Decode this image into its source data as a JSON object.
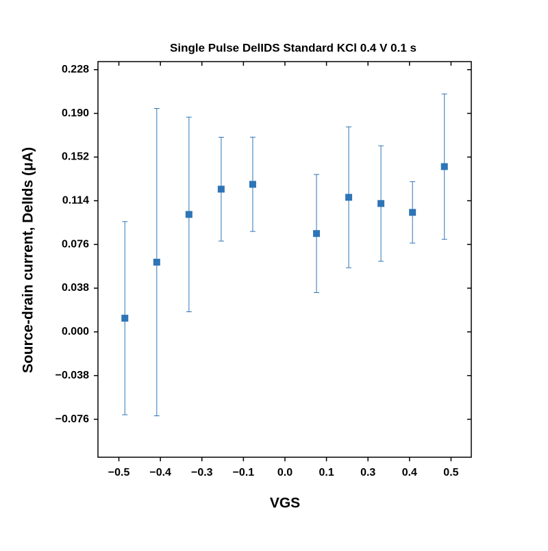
{
  "chart_data": {
    "type": "scatter",
    "title": "Single Pulse DelIDS Standard KCl 0.4 V 0.1 s",
    "x_label": "VGS",
    "y_label": "Source-drain current, DelIds (μA)",
    "color": "#2e75b6",
    "x": [
      -0.482,
      -0.386,
      -0.289,
      -0.192,
      -0.097,
      0.095,
      0.192,
      0.289,
      0.384,
      0.48
    ],
    "values": [
      0.0119,
      0.0606,
      0.1021,
      0.1241,
      0.1283,
      0.0855,
      0.117,
      0.1116,
      0.1039,
      0.1437
    ],
    "errors": [
      0.084,
      0.1336,
      0.0846,
      0.0451,
      0.041,
      0.0514,
      0.0612,
      0.0502,
      0.0267,
      0.0632
    ],
    "xlim": [
      -0.563,
      0.561
    ],
    "ylim": [
      -0.109,
      0.235
    ],
    "xticks": [
      {
        "value": -0.5,
        "label": "−0.5"
      },
      {
        "value": -0.375,
        "label": "−0.4"
      },
      {
        "value": -0.25,
        "label": "−0.3"
      },
      {
        "value": -0.125,
        "label": "−0.1"
      },
      {
        "value": 0,
        "label": "0.0"
      },
      {
        "value": 0.125,
        "label": "0.1"
      },
      {
        "value": 0.25,
        "label": "0.3"
      },
      {
        "value": 0.375,
        "label": "0.4"
      },
      {
        "value": 0.5,
        "label": "0.5"
      }
    ],
    "yticks": [
      {
        "value": -0.076,
        "label": "−0.076"
      },
      {
        "value": -0.038,
        "label": "−0.038"
      },
      {
        "value": 0,
        "label": "0.000"
      },
      0.038,
      0.076,
      0.114,
      0.152,
      {
        "value": 0.19,
        "label": "0.190"
      },
      0.228
    ]
  }
}
